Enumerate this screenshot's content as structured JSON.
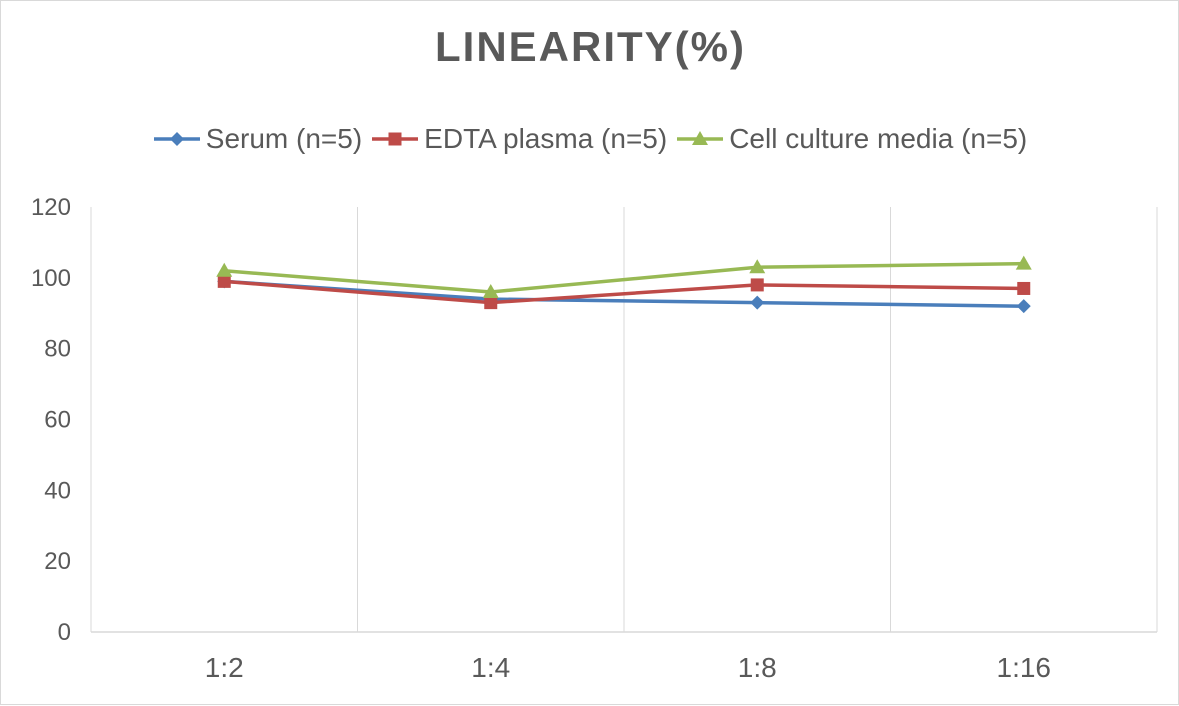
{
  "chart_data": {
    "type": "line",
    "title": "LINEARITY(%)",
    "xlabel": "",
    "ylabel": "",
    "categories": [
      "1:2",
      "1:4",
      "1:8",
      "1:16"
    ],
    "ylim": [
      0,
      120
    ],
    "yticks": [
      0,
      20,
      40,
      60,
      80,
      100,
      120
    ],
    "grid": "vertical",
    "legend_position": "top",
    "series": [
      {
        "name": "Serum (n=5)",
        "values": [
          99,
          94,
          93,
          92
        ],
        "color": "#4a7ebb",
        "marker": "diamond"
      },
      {
        "name": "EDTA plasma (n=5)",
        "values": [
          99,
          93,
          98,
          97
        ],
        "color": "#be4b48",
        "marker": "square"
      },
      {
        "name": "Cell culture media (n=5)",
        "values": [
          102,
          96,
          103,
          104
        ],
        "color": "#98b954",
        "marker": "triangle"
      }
    ]
  }
}
